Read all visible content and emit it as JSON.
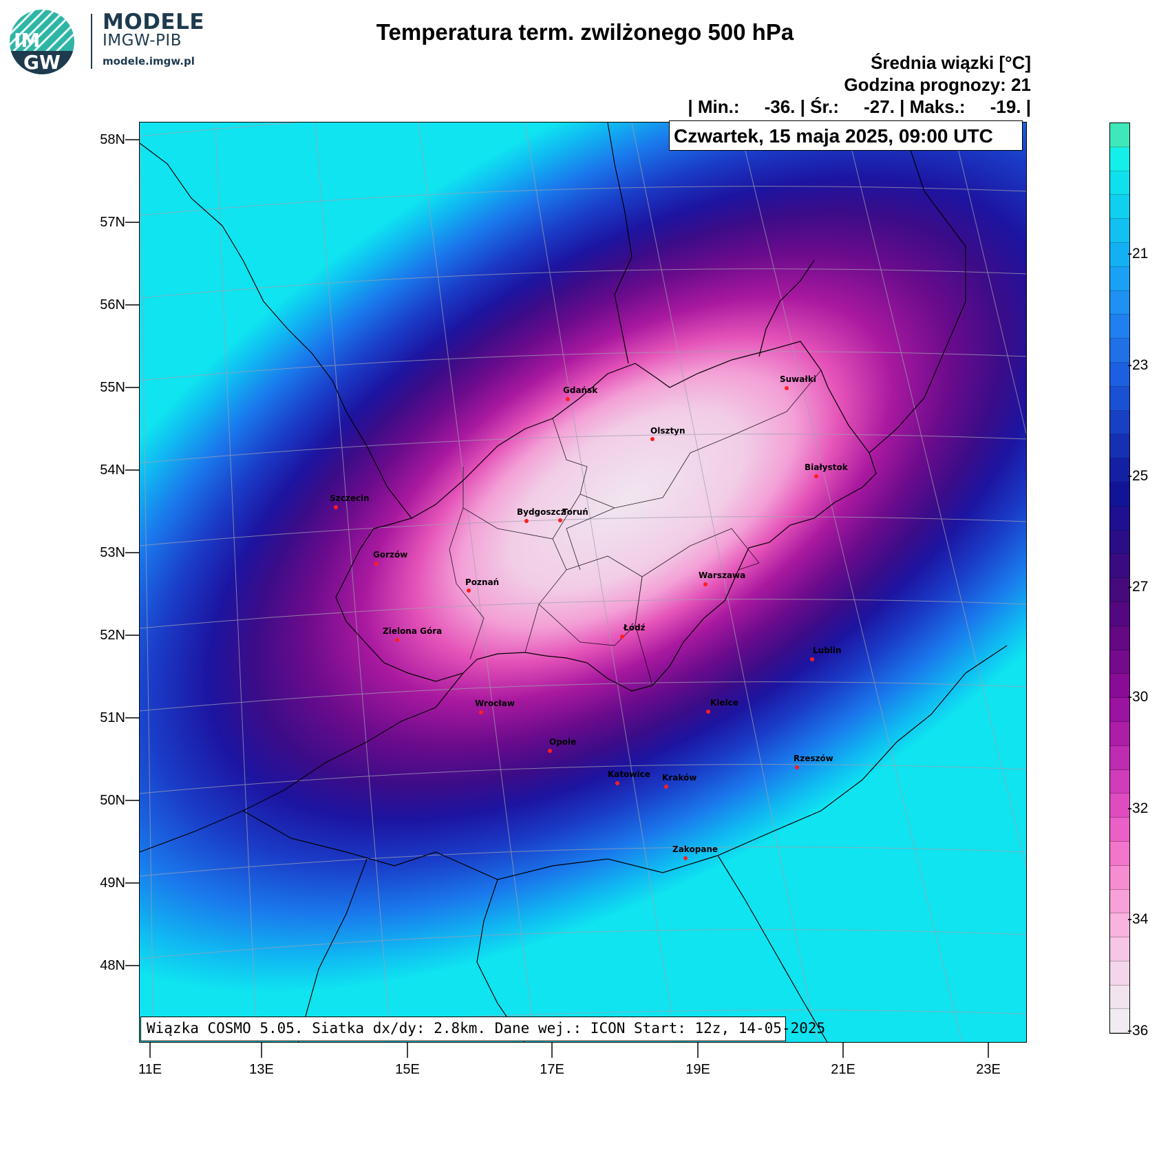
{
  "logo": {
    "badge_top": "IM",
    "badge_bottom": "GW",
    "title": "MODELE",
    "subtitle": "IMGW-PIB",
    "url": "modele.imgw.pl"
  },
  "header": {
    "title": "Temperatura term. zwilżonego 500 hPa",
    "stat_type": "Średnia wiązki [°C]",
    "forecast_hour": "Godzina prognozy: 21",
    "stats_line": "| Min.:     -36. | Śr.:     -27. | Maks.:     -19. |",
    "date": "Czwartek, 15 maja 2025, 09:00 UTC"
  },
  "footer": {
    "text": "Wiązka COSMO 5.05. Siatka dx/dy: 2.8km. Dane wej.: ICON Start: 12z, 14-05-2025"
  },
  "axes": {
    "lat_labels": [
      "58N",
      "57N",
      "56N",
      "55N",
      "54N",
      "53N",
      "52N",
      "51N",
      "50N",
      "49N",
      "48N"
    ],
    "lon_labels": [
      "11E",
      "13E",
      "15E",
      "17E",
      "19E",
      "21E",
      "23E"
    ]
  },
  "colorbar": {
    "labels": [
      "-21",
      "-23",
      "-25",
      "-27",
      "-30",
      "-32",
      "-34",
      "-36"
    ],
    "colors": [
      "#3ee8b8",
      "#13f0ea",
      "#0fe0ee",
      "#10d0f0",
      "#12c0f2",
      "#14b0f4",
      "#1aa0f5",
      "#1f90f4",
      "#2080f0",
      "#2070e8",
      "#1c5fe0",
      "#1a50d4",
      "#1840c4",
      "#1630b4",
      "#1420a4",
      "#121498",
      "#1e1090",
      "#2a0e88",
      "#380c80",
      "#460a7c",
      "#540880",
      "#640884",
      "#760a8c",
      "#880c96",
      "#9a14a0",
      "#ac1ea8",
      "#be2cb2",
      "#d03cba",
      "#de4cc0",
      "#ea60c6",
      "#f276cc",
      "#f68cd2",
      "#f8a0d8",
      "#f8b4de",
      "#f6c6e4",
      "#f4d6ea",
      "#f2e4ef",
      "#f0ecf1"
    ]
  },
  "cities": [
    {
      "name": "Gdańsk"
    },
    {
      "name": "Suwałki"
    },
    {
      "name": "Olsztyn"
    },
    {
      "name": "Białystok"
    },
    {
      "name": "Szczecin"
    },
    {
      "name": "Bydgoszcz"
    },
    {
      "name": "Toruń"
    },
    {
      "name": "Gorzów"
    },
    {
      "name": "Poznań"
    },
    {
      "name": "Warszawa"
    },
    {
      "name": "Łódź"
    },
    {
      "name": "Zielona Góra"
    },
    {
      "name": "Lublin"
    },
    {
      "name": "Wrocław"
    },
    {
      "name": "Kielce"
    },
    {
      "name": "Opole"
    },
    {
      "name": "Rzeszów"
    },
    {
      "name": "Katowice"
    },
    {
      "name": "Kraków"
    },
    {
      "name": "Zakopane"
    }
  ]
}
